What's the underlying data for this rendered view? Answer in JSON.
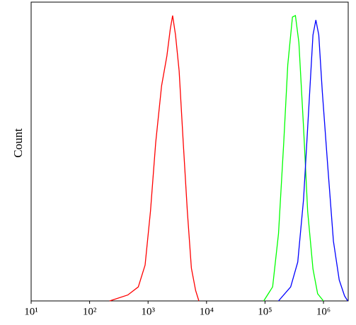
{
  "chart_data": {
    "type": "line",
    "ylabel": "Count",
    "xscale": "log",
    "xlim": [
      10,
      2650000
    ],
    "ylim": [
      0,
      100
    ],
    "xticks": [
      {
        "value": 10,
        "label": "10¹"
      },
      {
        "value": 100,
        "label": "10²"
      },
      {
        "value": 1000,
        "label": "10³"
      },
      {
        "value": 10000,
        "label": "10⁴"
      },
      {
        "value": 100000,
        "label": "10⁵"
      },
      {
        "value": 1000000,
        "label": "10⁶"
      }
    ],
    "series": [
      {
        "color": "#ff0000",
        "x": [
          220,
          450,
          680,
          890,
          1100,
          1350,
          1700,
          2100,
          2400,
          2630,
          2950,
          3400,
          4000,
          4700,
          5500,
          6500,
          7400
        ],
        "values": [
          0,
          2,
          4.7,
          12,
          30,
          53,
          72,
          82,
          91,
          95.5,
          89,
          77,
          53,
          30,
          11,
          3.5,
          0
        ]
      },
      {
        "color": "#00ff00",
        "x": [
          95000,
          135000,
          170000,
          209000,
          245000,
          295000,
          331000,
          380000,
          457000,
          537000,
          661000,
          794000,
          1000000
        ],
        "values": [
          0,
          4.7,
          22.5,
          53,
          79,
          95,
          95.5,
          86.5,
          58,
          30,
          10.7,
          2.4,
          0
        ]
      },
      {
        "color": "#0000ff",
        "x": [
          170000,
          275000,
          363000,
          457000,
          562000,
          661000,
          741000,
          832000,
          955000,
          1175000,
          1479000,
          1862000,
          2290000,
          2600000
        ],
        "values": [
          0,
          4.7,
          13,
          34,
          65,
          89,
          94,
          89,
          70,
          46,
          20,
          7,
          1.7,
          0
        ]
      }
    ]
  }
}
